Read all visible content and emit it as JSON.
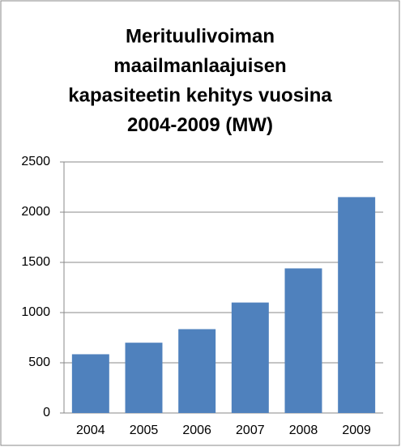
{
  "chart_data": {
    "type": "bar",
    "title_lines": [
      "Merituulivoiman",
      "maailmanlaajuisen",
      "kapasiteetin kehitys vuosina",
      "2004-2009 (MW)"
    ],
    "categories": [
      "2004",
      "2005",
      "2006",
      "2007",
      "2008",
      "2009"
    ],
    "values": [
      585,
      700,
      835,
      1100,
      1440,
      2150
    ],
    "color": "#4f81bd",
    "ylim": [
      0,
      2500
    ],
    "yticks": [
      0,
      500,
      1000,
      1500,
      2000,
      2500
    ],
    "grid": true
  }
}
